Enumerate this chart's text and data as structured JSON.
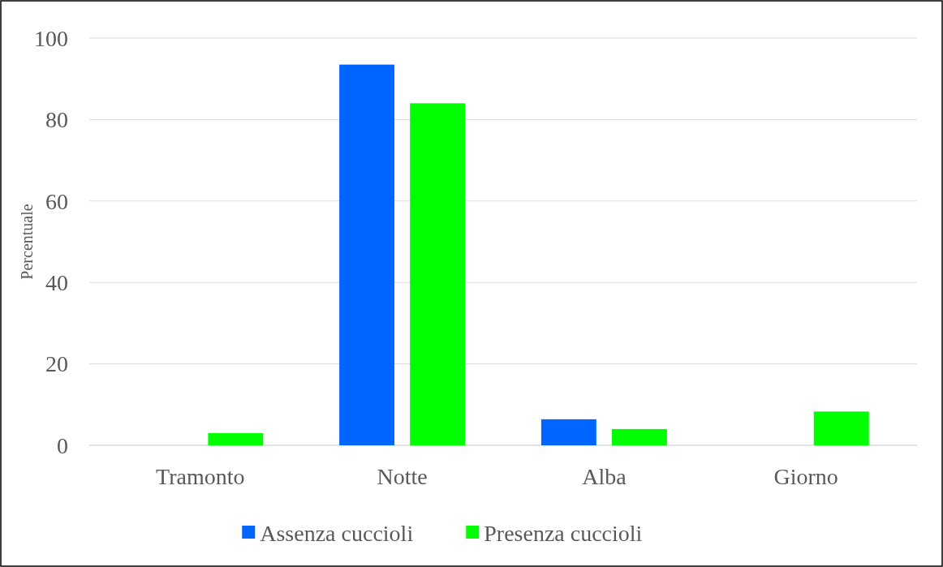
{
  "chart_data": {
    "type": "bar",
    "ylabel": "Percentuale",
    "categories": [
      "Tramonto",
      "Notte",
      "Alba",
      "Giorno"
    ],
    "series": [
      {
        "name": "Assenza cuccioli",
        "color": "#0066ff",
        "values": [
          0,
          93.5,
          6.4,
          0
        ]
      },
      {
        "name": "Presenza cuccioli",
        "color": "#00ff00",
        "values": [
          3,
          84,
          4,
          8.3
        ]
      }
    ],
    "ylim": [
      0,
      100
    ],
    "yticks": [
      0,
      20,
      40,
      60,
      80,
      100
    ],
    "grid": "y",
    "legend": "bottom"
  }
}
